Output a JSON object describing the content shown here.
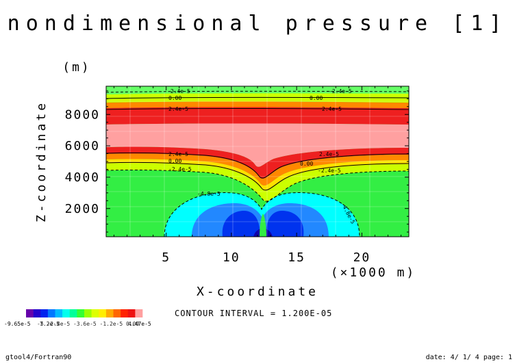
{
  "title": "nondimensional pressure [1]",
  "chart_data": {
    "type": "heatmap",
    "title": "nondimensional pressure [1]",
    "xlabel": "X-coordinate",
    "ylabel": "Z-coordinate",
    "x_unit": "(×1000 m)",
    "y_unit": "(m)",
    "xlim": [
      0.4,
      23.6
    ],
    "ylim": [
      200,
      9800
    ],
    "x_ticks": [
      "5",
      "10",
      "15",
      "20"
    ],
    "x_tick_values": [
      5,
      10,
      15,
      20
    ],
    "y_ticks": [
      "2000",
      "4000",
      "6000",
      "8000"
    ],
    "y_tick_values": [
      2000,
      4000,
      6000,
      8000
    ],
    "contour_interval": "CONTOUR INTERVAL = 1.200E-05",
    "contour_labels": [
      "-2.4e-5",
      "0.00",
      "2.4e-5",
      "-4.8e-5"
    ],
    "colorbar": {
      "min_label": "-9.65e-5",
      "mid_label": "7.2e-5",
      "labels_overlap": "-5 -2.4e-5 -3.6e-5 -1.2e-5 0.00",
      "max_label": "4.47e-5",
      "colors": [
        "#6600aa",
        "#2200cc",
        "#0022ee",
        "#0077ff",
        "#00bbff",
        "#00ffee",
        "#00ff99",
        "#33ff33",
        "#99ff00",
        "#ddff00",
        "#ffee00",
        "#ffaa00",
        "#ff6600",
        "#ff2200",
        "#ee1111",
        "#ffa0a0"
      ]
    },
    "grid": true
  },
  "footer": {
    "left": "gtool4/Fortran90",
    "right": "date: 4/ 1/ 4 page: 1"
  },
  "colors": {
    "pink": "#ffa0a0",
    "red": "#ee2020",
    "orange_red": "#ff4010",
    "orange": "#ff8800",
    "yellow": "#ffe000",
    "yellow_green": "#ccff00",
    "green": "#33ee44",
    "cyan": "#00ffff",
    "blue_mid": "#2288ff",
    "blue": "#0033ee",
    "dark_blue": "#1100aa"
  }
}
